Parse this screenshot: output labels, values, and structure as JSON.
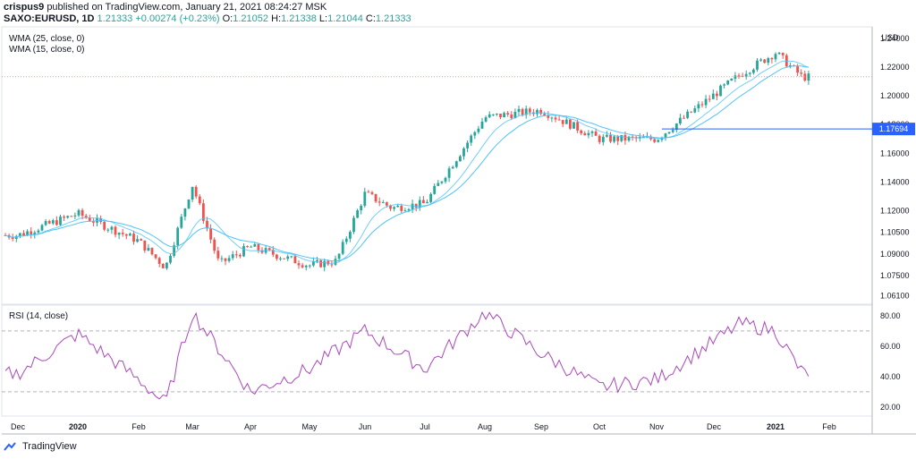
{
  "header": {
    "user": "crispus9",
    "published": "published on TradingView.com, January 21, 2021 08:24:27 MSK",
    "symbol": "SAXO:EURUSD, 1D",
    "last": "1.21333",
    "change": "+0.00274 (+0.23%)",
    "o_label": "O:",
    "o": "1.21052",
    "h_label": "H:",
    "h": "1.21338",
    "l_label": "L:",
    "l": "1.21044",
    "c_label": "C:",
    "c": "1.21333"
  },
  "indicators": {
    "wma25": "WMA (25, close, 0)",
    "wma15": "WMA (15, close, 0)",
    "rsi": "RSI (14, close)"
  },
  "brand": "TradingView",
  "colors": {
    "up": "#26a69a",
    "down": "#ef5350",
    "wma": "#4fc3f7",
    "wma2": "#7e57c2",
    "rsi": "#ab47bc",
    "hline": "#2962ff",
    "price_tag": "#2962ff",
    "cur_line": "#ef9a9a"
  },
  "chart_data": [
    {
      "type": "candlestick",
      "title": "SAXO:EURUSD, 1D",
      "currency": "USD",
      "ylim": [
        1.055,
        1.248
      ],
      "yticks": [
        "1.24000",
        "1.22000",
        "1.20000",
        "1.18000",
        "1.16000",
        "1.14000",
        "1.12000",
        "1.10500",
        "1.09000",
        "1.07500",
        "1.06100"
      ],
      "x_labels": [
        "Dec",
        "2020",
        "Feb",
        "Mar",
        "Apr",
        "May",
        "Jun",
        "Jul",
        "Aug",
        "Sep",
        "Oct",
        "Nov",
        "Dec",
        "2021",
        "Feb"
      ],
      "horizontal_line": {
        "value": 1.17694,
        "label": "1.17694"
      },
      "anchors": [
        [
          "Dec",
          1.103
        ],
        [
          "2020",
          1.118
        ],
        [
          "Feb",
          1.099
        ],
        [
          "Feb",
          1.0805
        ],
        [
          "Mar",
          1.138
        ],
        [
          "Mar",
          1.083
        ],
        [
          "Apr",
          1.095
        ],
        [
          "May",
          1.082
        ],
        [
          "May",
          1.085
        ],
        [
          "Jun",
          1.132
        ],
        [
          "Jun",
          1.122
        ],
        [
          "Jul",
          1.125
        ],
        [
          "Aug",
          1.185
        ],
        [
          "Sep",
          1.19
        ],
        [
          "Oct",
          1.17
        ],
        [
          "Nov",
          1.17
        ],
        [
          "Dec",
          1.215
        ],
        [
          "2021",
          1.23
        ],
        [
          "2021",
          1.213
        ]
      ],
      "series": [
        {
          "name": "WMA (25, close, 0)"
        },
        {
          "name": "WMA (15, close, 0)"
        }
      ]
    },
    {
      "type": "line",
      "title": "RSI (14, close)",
      "ylim": [
        14,
        87
      ],
      "yticks": [
        "80.00",
        "60.00",
        "40.00",
        "20.00"
      ],
      "bands": [
        70,
        30
      ],
      "anchors": [
        [
          "Dec",
          42
        ],
        [
          "2020",
          68
        ],
        [
          "Feb",
          38
        ],
        [
          "Feb",
          22
        ],
        [
          "Mar",
          82
        ],
        [
          "Apr",
          30
        ],
        [
          "May",
          45
        ],
        [
          "Jun",
          70
        ],
        [
          "Jul",
          45
        ],
        [
          "Aug",
          82
        ],
        [
          "Sep",
          55
        ],
        [
          "Oct",
          33
        ],
        [
          "Nov",
          38
        ],
        [
          "Dec",
          75
        ],
        [
          "2021",
          70
        ],
        [
          "2021",
          42
        ],
        [
          "Feb",
          48
        ]
      ]
    }
  ]
}
